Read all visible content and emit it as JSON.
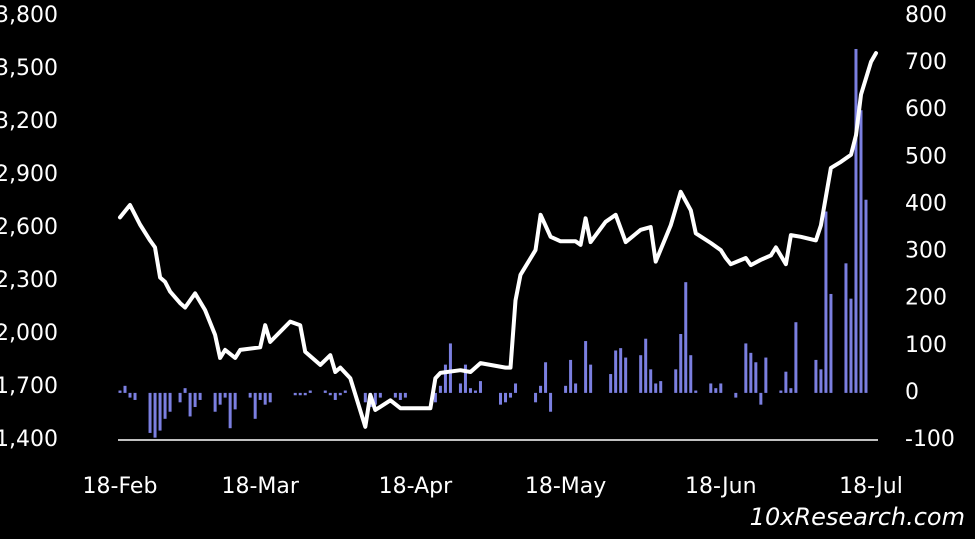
{
  "chart_data": {
    "type": "line",
    "watermark": "10xResearch.com",
    "xlim": [
      0,
      151
    ],
    "xticks": [
      {
        "value": 0,
        "label": "18-Feb"
      },
      {
        "value": 28,
        "label": "18-Mar"
      },
      {
        "value": 59,
        "label": "18-Apr"
      },
      {
        "value": 89,
        "label": "18-May"
      },
      {
        "value": 120,
        "label": "18-Jun"
      },
      {
        "value": 150,
        "label": "18-Jul"
      }
    ],
    "ylim": [
      1400,
      3800
    ],
    "yticks": [
      {
        "value": 1400,
        "label": "1,400"
      },
      {
        "value": 1700,
        "label": "1,700"
      },
      {
        "value": 2000,
        "label": "2,000"
      },
      {
        "value": 2300,
        "label": "2,300"
      },
      {
        "value": 2600,
        "label": "2,600"
      },
      {
        "value": 2900,
        "label": "2,900"
      },
      {
        "value": 3200,
        "label": "3,200"
      },
      {
        "value": 3500,
        "label": "3,500"
      },
      {
        "value": 3800,
        "label": "3,800"
      }
    ],
    "y2lim": [
      -100,
      800
    ],
    "y2ticks": [
      -100,
      0,
      100,
      200,
      300,
      400,
      500,
      600,
      700,
      800
    ],
    "series": [
      {
        "type": "bar",
        "axis": "y2",
        "color": "#7b7fe0",
        "x": [
          0,
          1,
          2,
          3,
          6,
          7,
          8,
          9,
          10,
          12,
          13,
          14,
          15,
          16,
          19,
          20,
          21,
          22,
          23,
          26,
          27,
          28,
          29,
          30,
          35,
          36,
          37,
          38,
          41,
          42,
          43,
          44,
          45,
          49,
          50,
          51,
          52,
          55,
          56,
          57,
          63,
          64,
          65,
          66,
          68,
          69,
          70,
          71,
          72,
          76,
          77,
          78,
          79,
          83,
          84,
          85,
          86,
          89,
          90,
          91,
          93,
          94,
          98,
          99,
          100,
          101,
          104,
          105,
          106,
          107,
          108,
          111,
          112,
          113,
          114,
          115,
          118,
          119,
          120,
          123,
          125,
          126,
          127,
          128,
          129,
          132,
          133,
          134,
          135,
          139,
          140,
          141,
          142,
          145,
          146,
          147,
          148,
          149
        ],
        "values": [
          5,
          15,
          -10,
          -15,
          -85,
          -95,
          -80,
          -55,
          -40,
          -20,
          10,
          -50,
          -30,
          -15,
          -40,
          -25,
          -10,
          -75,
          -35,
          -10,
          -55,
          -15,
          -25,
          -20,
          -5,
          -5,
          -5,
          5,
          5,
          -5,
          -15,
          -5,
          5,
          -20,
          -30,
          -25,
          -10,
          -10,
          -15,
          -10,
          -20,
          15,
          60,
          105,
          20,
          60,
          10,
          5,
          25,
          -25,
          -20,
          -10,
          20,
          -20,
          15,
          65,
          -40,
          15,
          70,
          20,
          110,
          60,
          40,
          90,
          95,
          75,
          80,
          115,
          50,
          20,
          25,
          50,
          125,
          235,
          80,
          5,
          20,
          10,
          20,
          -10,
          105,
          85,
          65,
          -25,
          75,
          5,
          45,
          10,
          150,
          70,
          50,
          385,
          210,
          275,
          200,
          730,
          600,
          410
        ]
      },
      {
        "type": "line",
        "axis": "y",
        "color": "#ffffff",
        "x": [
          0,
          2,
          4,
          6,
          7,
          8,
          9,
          10,
          12,
          13,
          15,
          17,
          19,
          20,
          21,
          23,
          24,
          28,
          29,
          30,
          34,
          36,
          37,
          40,
          42,
          43,
          44,
          46,
          49,
          50,
          51,
          54,
          56,
          59,
          62,
          63,
          64,
          68,
          70,
          72,
          77,
          78,
          79,
          80,
          83,
          84,
          86,
          88,
          91,
          92,
          93,
          94,
          97,
          99,
          101,
          104,
          106,
          107,
          110,
          112,
          114,
          115,
          118,
          120,
          121,
          122,
          125,
          126,
          128,
          130,
          131,
          133,
          134,
          136,
          139,
          140,
          142,
          144,
          146,
          147,
          148,
          150,
          151
        ],
        "values": [
          2660,
          2730,
          2620,
          2530,
          2490,
          2320,
          2295,
          2240,
          2175,
          2150,
          2230,
          2135,
          1995,
          1865,
          1910,
          1865,
          1910,
          1925,
          2050,
          1955,
          2070,
          2050,
          1900,
          1825,
          1880,
          1785,
          1810,
          1750,
          1475,
          1655,
          1570,
          1625,
          1580,
          1580,
          1580,
          1750,
          1780,
          1795,
          1785,
          1835,
          1810,
          1810,
          2190,
          2335,
          2475,
          2675,
          2550,
          2525,
          2525,
          2505,
          2655,
          2520,
          2635,
          2675,
          2520,
          2590,
          2605,
          2410,
          2615,
          2805,
          2700,
          2570,
          2515,
          2475,
          2430,
          2395,
          2430,
          2390,
          2420,
          2445,
          2490,
          2395,
          2560,
          2550,
          2530,
          2615,
          2940,
          2975,
          3015,
          3125,
          3355,
          3540,
          3590
        ]
      }
    ]
  }
}
